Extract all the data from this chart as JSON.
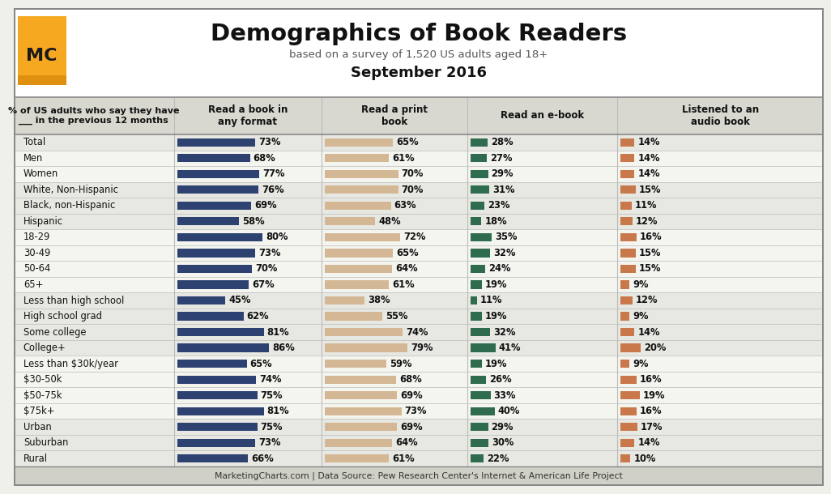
{
  "title": "Demographics of Book Readers",
  "subtitle": "based on a survey of 1,520 US adults aged 18+",
  "period": "September 2016",
  "footer": "MarketingCharts.com | Data Source: Pew Research Center's Internet & American Life Project",
  "col_header_label": "% of US adults who say they have\n___ in the previous 12 months",
  "columns": [
    "Read a book in\nany format",
    "Read a print\nbook",
    "Read an e-book",
    "Listened to an\naudio book"
  ],
  "rows": [
    {
      "label": "Total",
      "any": 73,
      "print": 65,
      "ebook": 28,
      "audio": 14,
      "group": 0
    },
    {
      "label": "Men",
      "any": 68,
      "print": 61,
      "ebook": 27,
      "audio": 14,
      "group": 1
    },
    {
      "label": "Women",
      "any": 77,
      "print": 70,
      "ebook": 29,
      "audio": 14,
      "group": 1
    },
    {
      "label": "White, Non-Hispanic",
      "any": 76,
      "print": 70,
      "ebook": 31,
      "audio": 15,
      "group": 2
    },
    {
      "label": "Black, non-Hispanic",
      "any": 69,
      "print": 63,
      "ebook": 23,
      "audio": 11,
      "group": 2
    },
    {
      "label": "Hispanic",
      "any": 58,
      "print": 48,
      "ebook": 18,
      "audio": 12,
      "group": 2
    },
    {
      "label": "18-29",
      "any": 80,
      "print": 72,
      "ebook": 35,
      "audio": 16,
      "group": 3
    },
    {
      "label": "30-49",
      "any": 73,
      "print": 65,
      "ebook": 32,
      "audio": 15,
      "group": 3
    },
    {
      "label": "50-64",
      "any": 70,
      "print": 64,
      "ebook": 24,
      "audio": 15,
      "group": 3
    },
    {
      "label": "65+",
      "any": 67,
      "print": 61,
      "ebook": 19,
      "audio": 9,
      "group": 3
    },
    {
      "label": "Less than high school",
      "any": 45,
      "print": 38,
      "ebook": 11,
      "audio": 12,
      "group": 4
    },
    {
      "label": "High school grad",
      "any": 62,
      "print": 55,
      "ebook": 19,
      "audio": 9,
      "group": 4
    },
    {
      "label": "Some college",
      "any": 81,
      "print": 74,
      "ebook": 32,
      "audio": 14,
      "group": 4
    },
    {
      "label": "College+",
      "any": 86,
      "print": 79,
      "ebook": 41,
      "audio": 20,
      "group": 4
    },
    {
      "label": "Less than $30k/year",
      "any": 65,
      "print": 59,
      "ebook": 19,
      "audio": 9,
      "group": 5
    },
    {
      "label": "$30-50k",
      "any": 74,
      "print": 68,
      "ebook": 26,
      "audio": 16,
      "group": 5
    },
    {
      "label": "$50-75k",
      "any": 75,
      "print": 69,
      "ebook": 33,
      "audio": 19,
      "group": 5
    },
    {
      "label": "$75k+",
      "any": 81,
      "print": 73,
      "ebook": 40,
      "audio": 16,
      "group": 5
    },
    {
      "label": "Urban",
      "any": 75,
      "print": 69,
      "ebook": 29,
      "audio": 17,
      "group": 6
    },
    {
      "label": "Suburban",
      "any": 73,
      "print": 64,
      "ebook": 30,
      "audio": 14,
      "group": 6
    },
    {
      "label": "Rural",
      "any": 66,
      "print": 61,
      "ebook": 22,
      "audio": 10,
      "group": 6
    }
  ],
  "bar_color_any": "#2e4272",
  "bar_color_print": "#d4b896",
  "bar_color_ebook": "#2e6b4f",
  "bar_color_audio": "#c8784a",
  "bg_color": "#f0f0eb",
  "header_bg": "#ffffff",
  "col_hdr_bg": "#d8d8d0",
  "row_alt_bg": "#e8e8e3",
  "row_norm_bg": "#f5f5f0",
  "border_color": "#aaaaaa",
  "text_color": "#111111",
  "footer_bg": "#d0d0c8",
  "group_bgs": [
    "#e8e8e3",
    "#f5f5f0",
    "#e8e8e3",
    "#f5f5f0",
    "#e8e8e3",
    "#f5f5f0",
    "#e8e8e3"
  ]
}
